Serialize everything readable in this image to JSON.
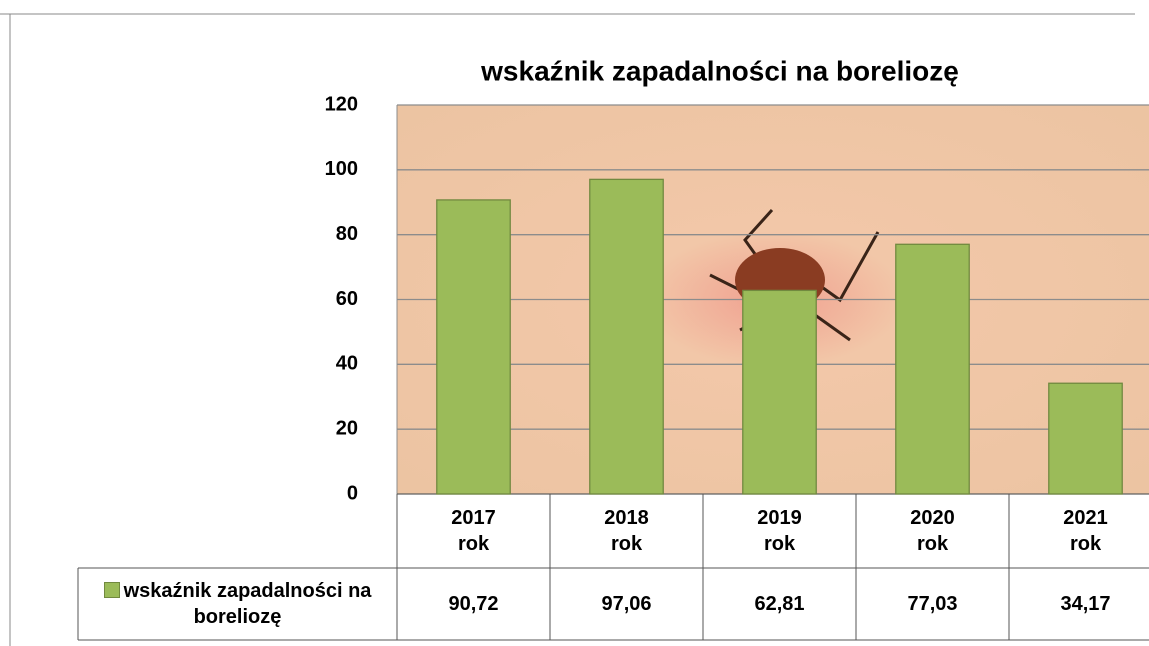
{
  "chart_data": {
    "type": "bar",
    "title": "wskaźnik zapadalności na boreliozę",
    "categories": [
      "2017 rok",
      "2018 rok",
      "2019 rok",
      "2020 rok",
      "2021 rok"
    ],
    "series": [
      {
        "name": "wskaźnik zapadalności na boreliozę",
        "color": "#9bbb59",
        "values": [
          90.72,
          97.06,
          62.81,
          77.03,
          34.17
        ],
        "value_labels": [
          "90,72",
          "97,06",
          "62,81",
          "77,03",
          "34,17"
        ]
      }
    ],
    "ylim": [
      0,
      120
    ],
    "yticks": [
      0,
      20,
      40,
      60,
      80,
      100,
      120
    ],
    "grid": true,
    "data_table": true
  }
}
